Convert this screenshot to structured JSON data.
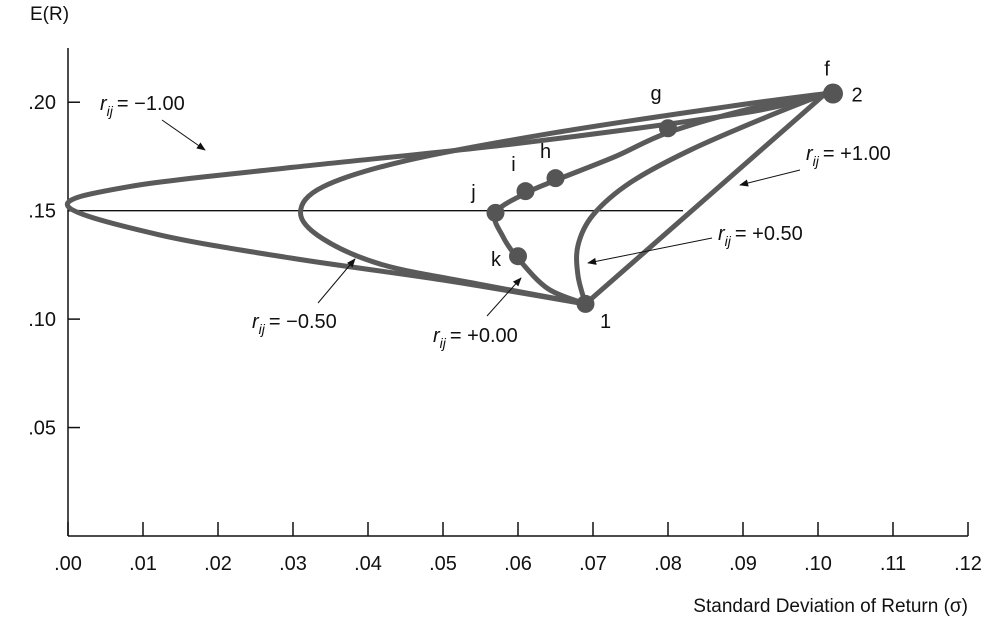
{
  "chart_data": {
    "type": "line",
    "title": "",
    "ylabel": "E(R)",
    "xlabel": "Standard Deviation of Return (σ)",
    "xlim": [
      0.0,
      0.12
    ],
    "ylim": [
      0.0,
      0.225
    ],
    "x_ticks": [
      {
        "value": 0.0,
        "label": ".00"
      },
      {
        "value": 0.01,
        "label": ".01"
      },
      {
        "value": 0.02,
        "label": ".02"
      },
      {
        "value": 0.03,
        "label": ".03"
      },
      {
        "value": 0.04,
        "label": ".04"
      },
      {
        "value": 0.05,
        "label": ".05"
      },
      {
        "value": 0.06,
        "label": ".06"
      },
      {
        "value": 0.07,
        "label": ".07"
      },
      {
        "value": 0.08,
        "label": ".08"
      },
      {
        "value": 0.09,
        "label": ".09"
      },
      {
        "value": 0.1,
        "label": ".10"
      },
      {
        "value": 0.11,
        "label": ".11"
      },
      {
        "value": 0.12,
        "label": ".12"
      }
    ],
    "y_ticks": [
      {
        "value": 0.05,
        "label": ".05"
      },
      {
        "value": 0.1,
        "label": ".10"
      },
      {
        "value": 0.15,
        "label": ".15"
      },
      {
        "value": 0.2,
        "label": ".20"
      }
    ],
    "reference_line": {
      "y": 0.15,
      "x_from": 0.0,
      "x_to": 0.082
    },
    "series": [
      {
        "name": "r = -1.00",
        "label_text": "= −1.00",
        "points": [
          [
            0.069,
            0.107
          ],
          [
            0.05,
            0.118
          ],
          [
            0.03,
            0.128
          ],
          [
            0.012,
            0.139
          ],
          [
            0.0,
            0.152
          ],
          [
            0.008,
            0.161
          ],
          [
            0.03,
            0.17
          ],
          [
            0.06,
            0.181
          ],
          [
            0.09,
            0.195
          ],
          [
            0.101,
            0.204
          ]
        ]
      },
      {
        "name": "r = -0.50",
        "label_text": "= −0.50",
        "points": [
          [
            0.069,
            0.107
          ],
          [
            0.055,
            0.116
          ],
          [
            0.042,
            0.125
          ],
          [
            0.034,
            0.137
          ],
          [
            0.031,
            0.149
          ],
          [
            0.034,
            0.161
          ],
          [
            0.045,
            0.173
          ],
          [
            0.065,
            0.186
          ],
          [
            0.088,
            0.198
          ],
          [
            0.101,
            0.204
          ]
        ]
      },
      {
        "name": "r = +0.00",
        "label_text": "= +0.00",
        "points": [
          [
            0.069,
            0.107
          ],
          [
            0.064,
            0.114
          ],
          [
            0.06,
            0.128
          ],
          [
            0.058,
            0.138
          ],
          [
            0.057,
            0.149
          ],
          [
            0.061,
            0.158
          ],
          [
            0.065,
            0.164
          ],
          [
            0.073,
            0.175
          ],
          [
            0.08,
            0.186
          ],
          [
            0.091,
            0.197
          ],
          [
            0.101,
            0.204
          ]
        ]
      },
      {
        "name": "r = +0.50",
        "label_text": "= +0.50",
        "points": [
          [
            0.069,
            0.107
          ],
          [
            0.068,
            0.12
          ],
          [
            0.068,
            0.134
          ],
          [
            0.07,
            0.148
          ],
          [
            0.075,
            0.163
          ],
          [
            0.083,
            0.178
          ],
          [
            0.093,
            0.193
          ],
          [
            0.101,
            0.204
          ]
        ]
      },
      {
        "name": "r = +1.00",
        "label_text": "= +1.00",
        "points": [
          [
            0.069,
            0.107
          ],
          [
            0.101,
            0.204
          ]
        ]
      }
    ],
    "points": [
      {
        "label": "1",
        "x": 0.069,
        "y": 0.107
      },
      {
        "label": "2",
        "x": 0.102,
        "y": 0.204
      },
      {
        "label": "f",
        "x": 0.102,
        "y": 0.204
      },
      {
        "label": "g",
        "x": 0.08,
        "y": 0.188
      },
      {
        "label": "h",
        "x": 0.065,
        "y": 0.165
      },
      {
        "label": "i",
        "x": 0.061,
        "y": 0.159
      },
      {
        "label": "j",
        "x": 0.057,
        "y": 0.149
      },
      {
        "label": "k",
        "x": 0.06,
        "y": 0.129
      }
    ],
    "correlation_symbol": "r",
    "correlation_subscript": "ij",
    "annotations": [
      {
        "series": 0,
        "label_pos": "upper-left"
      },
      {
        "series": 1,
        "label_pos": "lower-left"
      },
      {
        "series": 2,
        "label_pos": "lower-center"
      },
      {
        "series": 3,
        "label_pos": "right"
      },
      {
        "series": 4,
        "label_pos": "right"
      }
    ],
    "grid": false,
    "legend": "none"
  }
}
